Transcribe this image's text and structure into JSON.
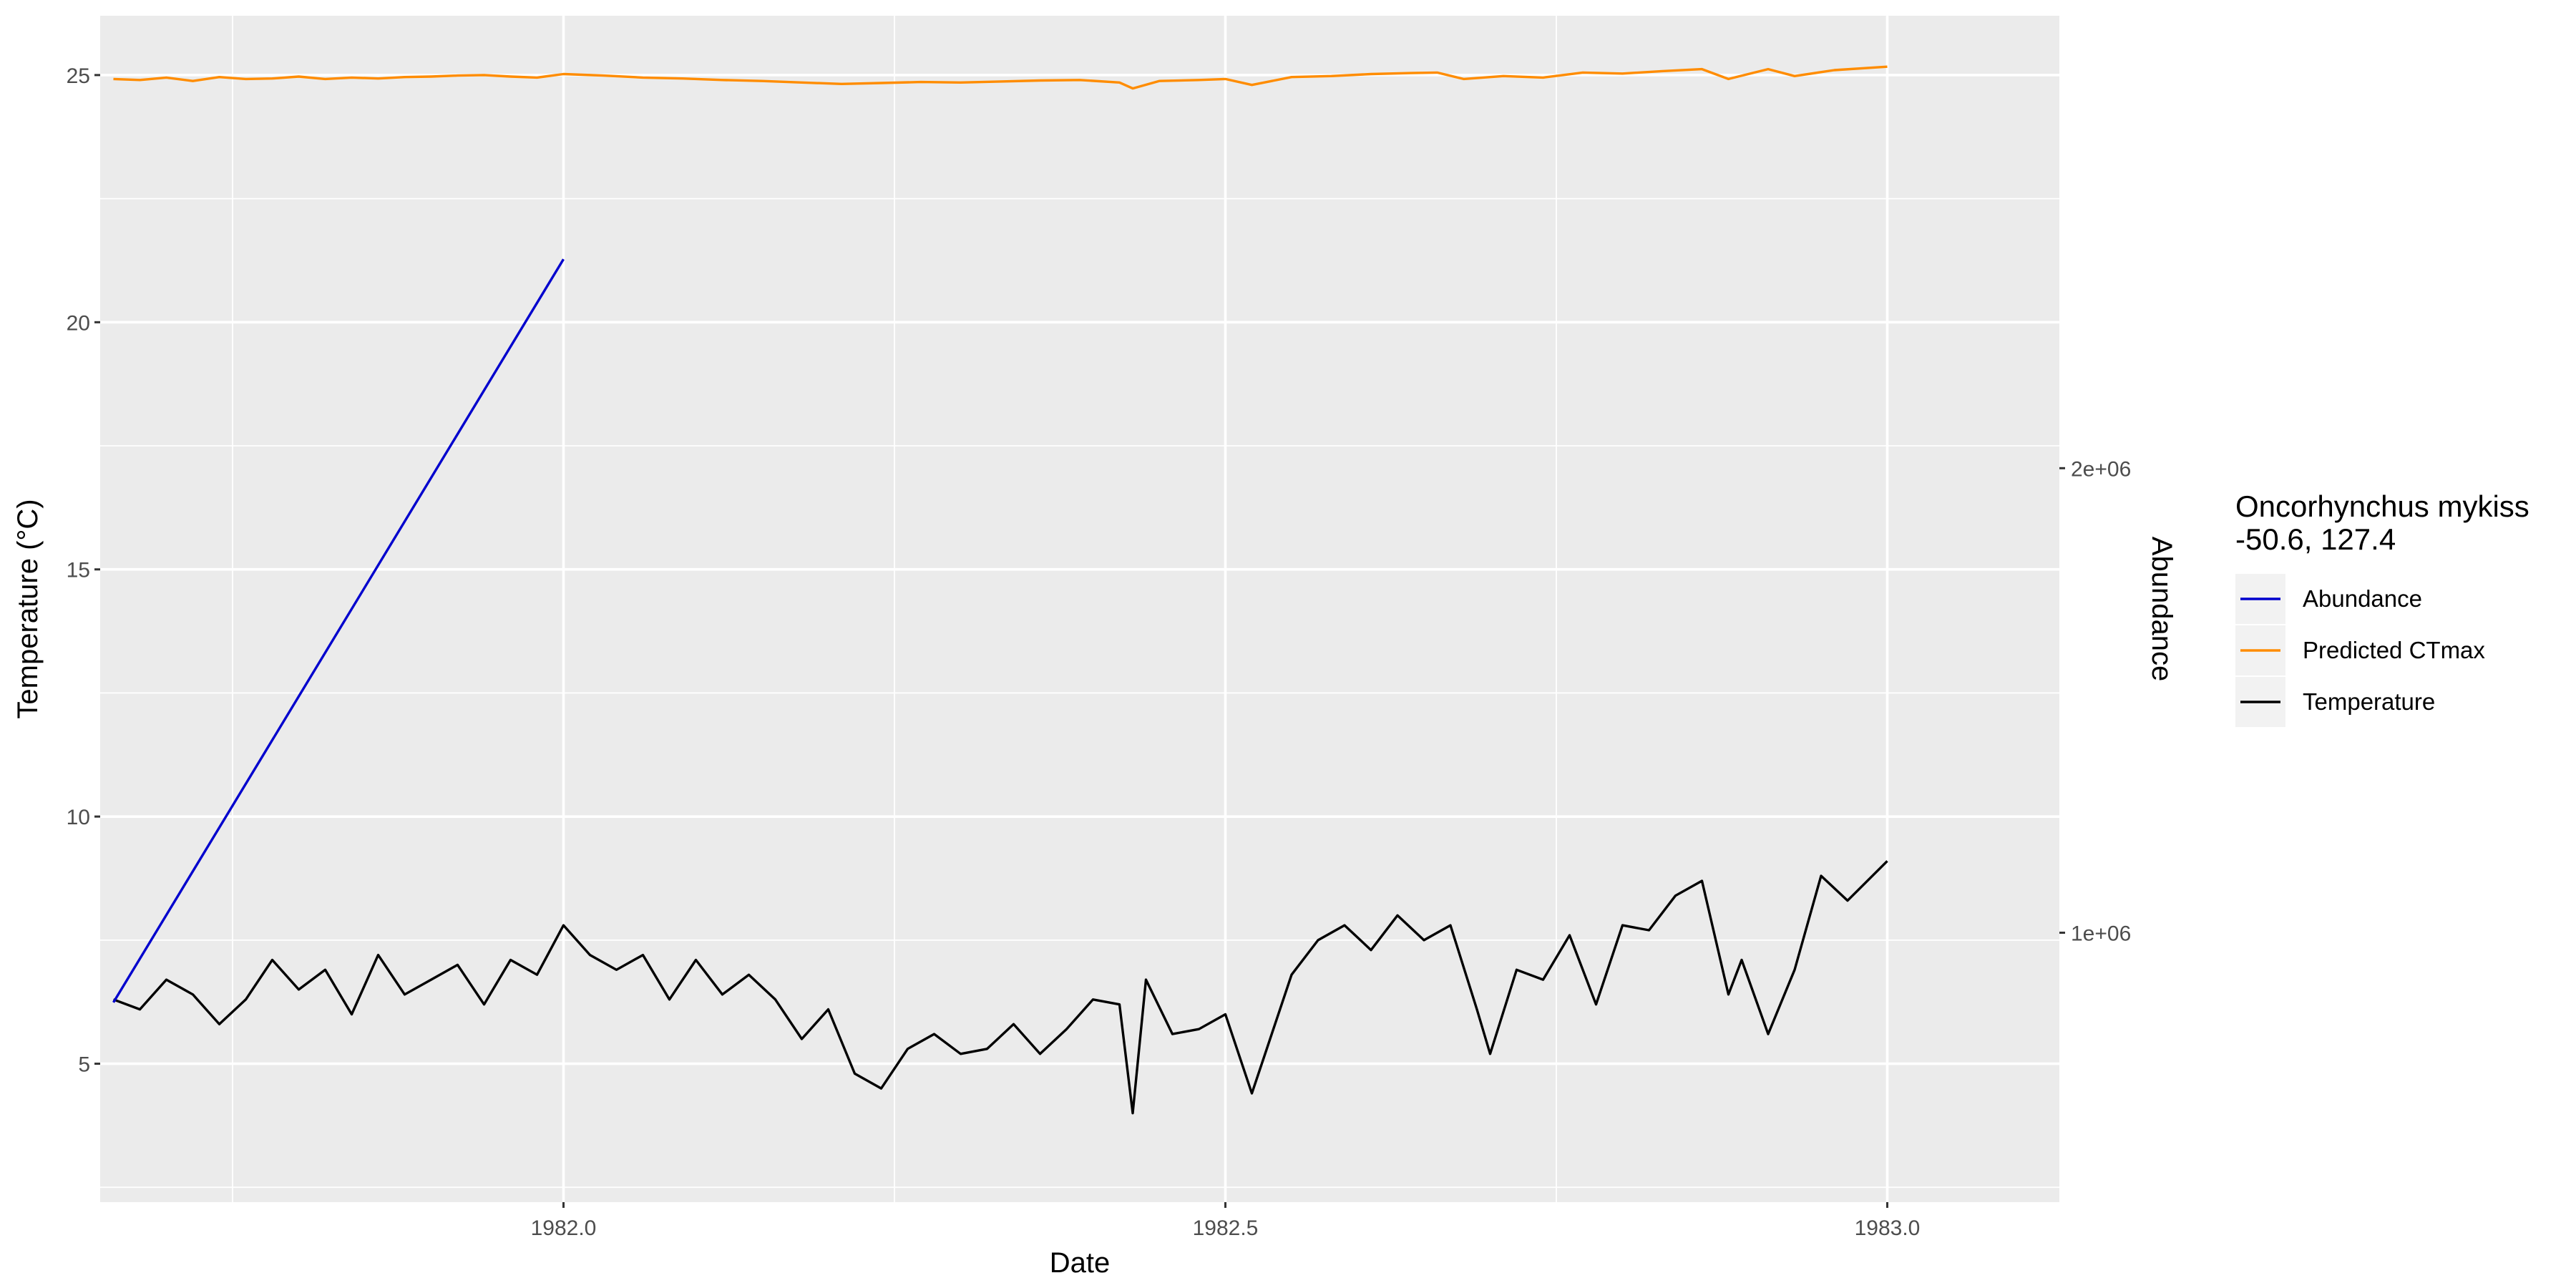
{
  "chart_data": {
    "type": "line",
    "xlabel": "Date",
    "ylabel": "Temperature (°C)",
    "y2label": "Abundance",
    "xlim": [
      1981.65,
      1983.13
    ],
    "ylim": [
      2.2,
      26.2
    ],
    "y2lim": [
      420000,
      2974000
    ],
    "x_ticks": [
      1982.0,
      1982.5,
      1983.0
    ],
    "x_tick_labels": [
      "1982.0",
      "1982.5",
      "1983.0"
    ],
    "y_ticks": [
      5,
      10,
      15,
      20,
      25
    ],
    "y_tick_labels": [
      "5",
      "10",
      "15",
      "20",
      "25"
    ],
    "y2_ticks": [
      1000000,
      2000000
    ],
    "y2_tick_labels": [
      "1e+06",
      "2e+06"
    ],
    "grid": true,
    "legend": {
      "title_line1": "Oncorhynchus mykiss",
      "title_line2": "-50.6, 127.4",
      "placement": "right",
      "entries": [
        "Abundance",
        "Predicted CTmax",
        "Temperature"
      ]
    },
    "colors": {
      "abundance": "#0000CD",
      "ctmax": "#FF8C00",
      "temperature": "#000000",
      "panel": "#EBEBEB",
      "grid": "#FFFFFF",
      "y2_title": "#0000FF"
    },
    "series": [
      {
        "name": "Abundance",
        "axis": "right",
        "x": [
          1981.66,
          1982.0
        ],
        "y": [
          850000,
          2450000
        ]
      },
      {
        "name": "Predicted CTmax",
        "axis": "left",
        "x": [
          1981.66,
          1981.68,
          1981.7,
          1981.72,
          1981.74,
          1981.76,
          1981.78,
          1981.8,
          1981.82,
          1981.84,
          1981.86,
          1981.88,
          1981.9,
          1981.92,
          1981.94,
          1981.96,
          1981.98,
          1982.0,
          1982.03,
          1982.06,
          1982.09,
          1982.12,
          1982.15,
          1982.18,
          1982.21,
          1982.24,
          1982.27,
          1982.3,
          1982.33,
          1982.36,
          1982.39,
          1982.42,
          1982.43,
          1982.45,
          1982.48,
          1982.5,
          1982.52,
          1982.55,
          1982.58,
          1982.61,
          1982.64,
          1982.66,
          1982.68,
          1982.71,
          1982.74,
          1982.77,
          1982.8,
          1982.83,
          1982.86,
          1982.88,
          1982.91,
          1982.93,
          1982.96,
          1983.0
        ],
        "y": [
          24.92,
          24.9,
          24.95,
          24.88,
          24.96,
          24.92,
          24.93,
          24.97,
          24.92,
          24.95,
          24.93,
          24.96,
          24.97,
          24.99,
          25.0,
          24.97,
          24.95,
          25.02,
          24.99,
          24.95,
          24.93,
          24.9,
          24.88,
          24.85,
          24.82,
          24.84,
          24.86,
          24.85,
          24.87,
          24.89,
          24.9,
          24.85,
          24.73,
          24.88,
          24.9,
          24.92,
          24.8,
          24.96,
          24.98,
          25.02,
          25.04,
          25.05,
          24.92,
          24.98,
          24.95,
          25.05,
          25.03,
          25.08,
          25.12,
          24.92,
          25.12,
          24.98,
          25.1,
          25.17
        ]
      },
      {
        "name": "Temperature",
        "axis": "left",
        "x": [
          1981.66,
          1981.68,
          1981.7,
          1981.72,
          1981.74,
          1981.76,
          1981.78,
          1981.8,
          1981.82,
          1981.84,
          1981.86,
          1981.88,
          1981.9,
          1981.92,
          1981.94,
          1981.96,
          1981.98,
          1982.0,
          1982.02,
          1982.04,
          1982.06,
          1982.08,
          1982.1,
          1982.12,
          1982.14,
          1982.16,
          1982.18,
          1982.2,
          1982.22,
          1982.24,
          1982.26,
          1982.28,
          1982.3,
          1982.32,
          1982.34,
          1982.36,
          1982.38,
          1982.4,
          1982.42,
          1982.43,
          1982.44,
          1982.46,
          1982.48,
          1982.5,
          1982.52,
          1982.53,
          1982.55,
          1982.57,
          1982.59,
          1982.61,
          1982.63,
          1982.65,
          1982.67,
          1982.69,
          1982.7,
          1982.72,
          1982.74,
          1982.76,
          1982.78,
          1982.8,
          1982.82,
          1982.84,
          1982.86,
          1982.88,
          1982.89,
          1982.91,
          1982.93,
          1982.95,
          1982.97,
          1983.0
        ],
        "y": [
          6.3,
          6.1,
          6.7,
          6.4,
          5.8,
          6.3,
          7.1,
          6.5,
          6.9,
          6.0,
          7.2,
          6.4,
          6.7,
          7.0,
          6.2,
          7.1,
          6.8,
          7.8,
          7.2,
          6.9,
          7.2,
          6.3,
          7.1,
          6.4,
          6.8,
          6.3,
          5.5,
          6.1,
          4.8,
          4.5,
          5.3,
          5.6,
          5.2,
          5.3,
          5.8,
          5.2,
          5.7,
          6.3,
          6.2,
          4.0,
          6.7,
          5.6,
          5.7,
          6.0,
          4.4,
          5.2,
          6.8,
          7.5,
          7.8,
          7.3,
          8.0,
          7.5,
          7.8,
          6.1,
          5.2,
          6.9,
          6.7,
          7.6,
          6.2,
          7.8,
          7.7,
          8.4,
          8.7,
          6.4,
          7.1,
          5.6,
          6.9,
          8.8,
          8.3,
          9.1
        ]
      }
    ]
  }
}
